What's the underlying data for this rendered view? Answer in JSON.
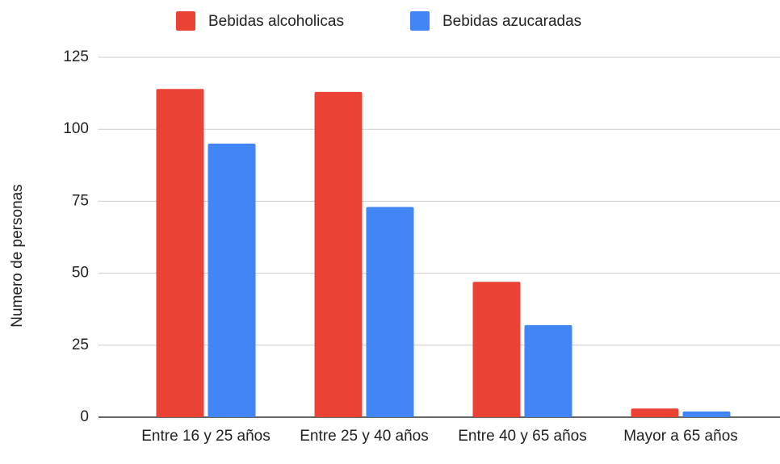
{
  "chart_data": {
    "type": "bar",
    "categories": [
      "Entre 16 y 25 años",
      "Entre 25 y 40 años",
      "Entre 40 y 65 años",
      "Mayor a 65 años"
    ],
    "series": [
      {
        "name": "Bebidas alcoholicas",
        "color": "#ea4335",
        "values": [
          114,
          113,
          47,
          3
        ]
      },
      {
        "name": "Bebidas azucaradas",
        "color": "#4285f4",
        "values": [
          95,
          73,
          32,
          2
        ]
      }
    ],
    "ylabel": "Numero de personas",
    "ylim": [
      0,
      125
    ],
    "yticks": [
      0,
      25,
      50,
      75,
      100,
      125
    ],
    "grid": true,
    "legend": "top"
  }
}
